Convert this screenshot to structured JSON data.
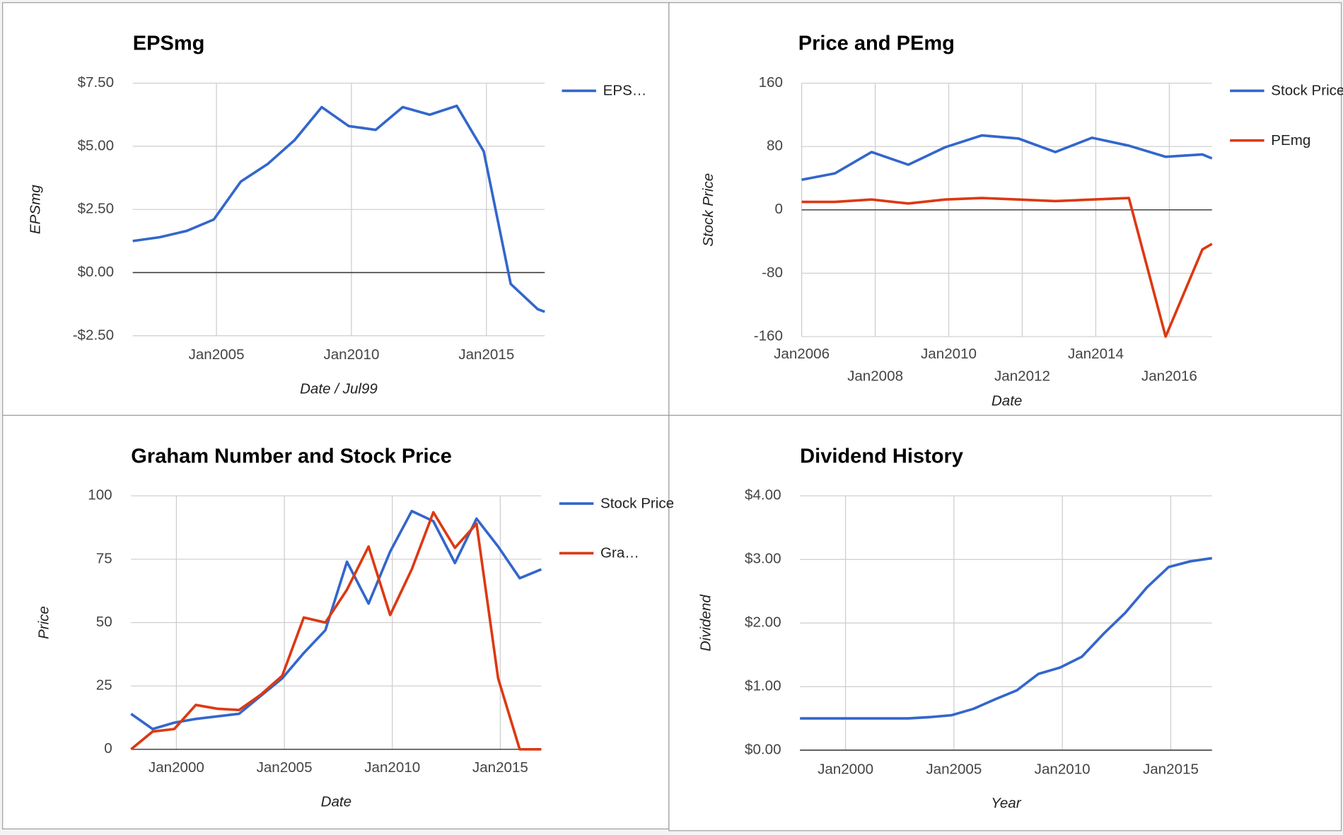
{
  "chart_data": [
    {
      "type": "line",
      "title": "EPSmg",
      "x_label": "Date / Jul99",
      "y_label": "EPSmg",
      "x": [
        2001.9,
        2002.9,
        2003.9,
        2004.9,
        2005.9,
        2006.9,
        2007.9,
        2008.9,
        2009.9,
        2010.9,
        2011.9,
        2012.9,
        2013.9,
        2014.9,
        2015.9,
        2016.9,
        2017.16
      ],
      "series": [
        {
          "name": "EPS…",
          "color": "#3366cc",
          "values": [
            1.25,
            1.4,
            1.65,
            2.1,
            3.6,
            4.3,
            5.25,
            6.55,
            5.8,
            5.65,
            6.55,
            6.25,
            6.6,
            4.8,
            -0.45,
            -1.45,
            -1.55
          ]
        }
      ],
      "xlim": [
        2001.9,
        2017.16
      ],
      "xticks": [
        {
          "value": 2005,
          "label": "Jan2005"
        },
        {
          "value": 2010,
          "label": "Jan2010"
        },
        {
          "value": 2015,
          "label": "Jan2015"
        }
      ],
      "ylim": [
        -2.5,
        7.5
      ],
      "yticks": [
        {
          "value": 7.5,
          "label": "$7.50"
        },
        {
          "value": 5,
          "label": "$5.00"
        },
        {
          "value": 2.5,
          "label": "$2.50"
        },
        {
          "value": 0,
          "label": "$0.00"
        },
        {
          "value": -2.5,
          "label": "-$2.50"
        }
      ],
      "grid": true,
      "legend": "right"
    },
    {
      "type": "line",
      "title": "Price and PEmg",
      "x_label": "Date",
      "y_label": "Stock Price",
      "x": [
        2006.0,
        2006.9,
        2007.9,
        2008.9,
        2009.9,
        2010.9,
        2011.9,
        2012.9,
        2013.9,
        2014.9,
        2015.9,
        2016.9,
        2017.16
      ],
      "series": [
        {
          "name": "Stock Price",
          "color": "#3366cc",
          "values": [
            38,
            46,
            73,
            57,
            79,
            94,
            90,
            73,
            91,
            81,
            67,
            70,
            65
          ]
        },
        {
          "name": "PEmg",
          "color": "#dc3912",
          "values": [
            10,
            10,
            13,
            8,
            13,
            15,
            13,
            11,
            13,
            15,
            -160,
            -50,
            -43
          ]
        }
      ],
      "xlim": [
        2006.0,
        2017.16
      ],
      "xticks": [
        {
          "value": 2006,
          "label": "Jan2006"
        },
        {
          "value": 2008,
          "label": "Jan2008"
        },
        {
          "value": 2010,
          "label": "Jan2010"
        },
        {
          "value": 2012,
          "label": "Jan2012"
        },
        {
          "value": 2014,
          "label": "Jan2014"
        },
        {
          "value": 2016,
          "label": "Jan2016"
        }
      ],
      "ylim": [
        -160,
        160
      ],
      "yticks": [
        160,
        80,
        0,
        -80,
        -160
      ],
      "grid": true,
      "legend": "right"
    },
    {
      "type": "line",
      "title": "Graham Number and Stock Price",
      "x_label": "Date",
      "y_label": "Price",
      "x": [
        1997.9,
        1998.9,
        1999.9,
        2000.9,
        2001.9,
        2002.9,
        2003.9,
        2004.9,
        2005.9,
        2006.9,
        2007.9,
        2008.9,
        2009.9,
        2010.9,
        2011.9,
        2012.9,
        2013.9,
        2014.9,
        2015.9,
        2016.9
      ],
      "series": [
        {
          "name": "Stock Price",
          "color": "#3366cc",
          "values": [
            14,
            8,
            10.5,
            12,
            13,
            14,
            21,
            28,
            38,
            47,
            74,
            57.5,
            78,
            94,
            90,
            73.5,
            91,
            80,
            67.5,
            71
          ]
        },
        {
          "name": "Gra…",
          "color": "#dc3912",
          "values": [
            0,
            7,
            8,
            17.5,
            16,
            15.5,
            21.5,
            29,
            52,
            50,
            63,
            80,
            53,
            71,
            93.5,
            79.5,
            89,
            28,
            0,
            0
          ]
        }
      ],
      "xlim": [
        1997.9,
        2016.9
      ],
      "xticks": [
        {
          "value": 2000,
          "label": "Jan2000"
        },
        {
          "value": 2005,
          "label": "Jan2005"
        },
        {
          "value": 2010,
          "label": "Jan2010"
        },
        {
          "value": 2015,
          "label": "Jan2015"
        }
      ],
      "ylim": [
        0,
        100
      ],
      "yticks": [
        100,
        75,
        50,
        25,
        0
      ],
      "grid": true,
      "legend": "right"
    },
    {
      "type": "line",
      "title": "Dividend History",
      "x_label": "Year",
      "y_label": "Dividend",
      "x": [
        1997.9,
        1998.9,
        1999.9,
        2000.9,
        2001.9,
        2002.9,
        2003.9,
        2004.9,
        2005.9,
        2006.9,
        2007.9,
        2008.9,
        2009.9,
        2010.9,
        2011.9,
        2012.9,
        2013.9,
        2014.9,
        2015.9,
        2016.9
      ],
      "series": [
        {
          "color": "#3366cc",
          "values": [
            0.5,
            0.5,
            0.5,
            0.5,
            0.5,
            0.5,
            0.52,
            0.55,
            0.65,
            0.8,
            0.94,
            1.2,
            1.3,
            1.47,
            1.83,
            2.16,
            2.56,
            2.88,
            2.97,
            3.02
          ]
        }
      ],
      "xlim": [
        1997.9,
        2016.9
      ],
      "xticks": [
        {
          "value": 2000,
          "label": "Jan2000"
        },
        {
          "value": 2005,
          "label": "Jan2005"
        },
        {
          "value": 2010,
          "label": "Jan2010"
        },
        {
          "value": 2015,
          "label": "Jan2015"
        }
      ],
      "ylim": [
        0,
        4
      ],
      "yticks": [
        {
          "value": 4,
          "label": "$4.00"
        },
        {
          "value": 3,
          "label": "$3.00"
        },
        {
          "value": 2,
          "label": "$2.00"
        },
        {
          "value": 1,
          "label": "$1.00"
        },
        {
          "value": 0,
          "label": "$0.00"
        }
      ],
      "grid": true
    }
  ]
}
